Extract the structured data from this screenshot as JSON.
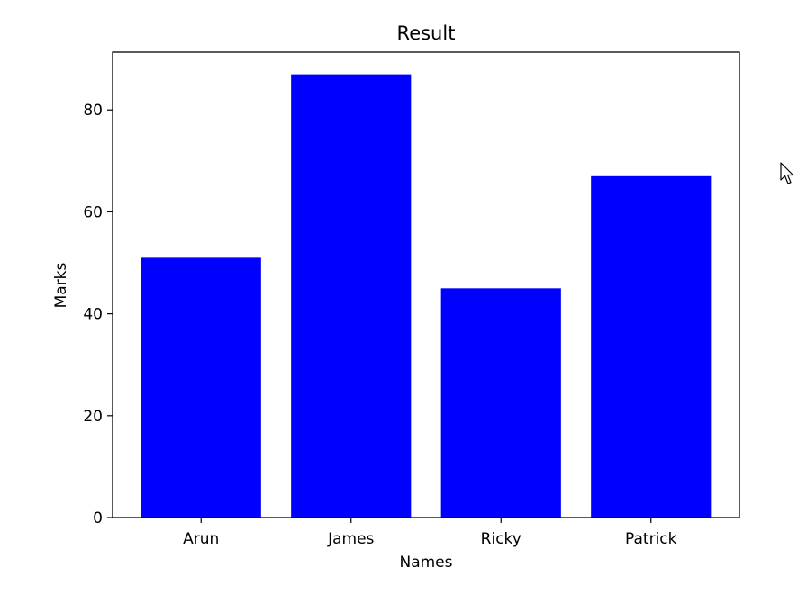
{
  "chart_data": {
    "type": "bar",
    "title": "Result",
    "xlabel": "Names",
    "ylabel": "Marks",
    "categories": [
      "Arun",
      "James",
      "Ricky",
      "Patrick"
    ],
    "values": [
      51,
      87,
      45,
      67
    ],
    "ylim": [
      0,
      91.35
    ],
    "yticks": [
      0,
      20,
      40,
      60,
      80
    ],
    "bar_color": "#0000ff",
    "grid": false,
    "legend": "none"
  },
  "overlay": {
    "cursor_icon": "mouse-pointer-icon"
  }
}
